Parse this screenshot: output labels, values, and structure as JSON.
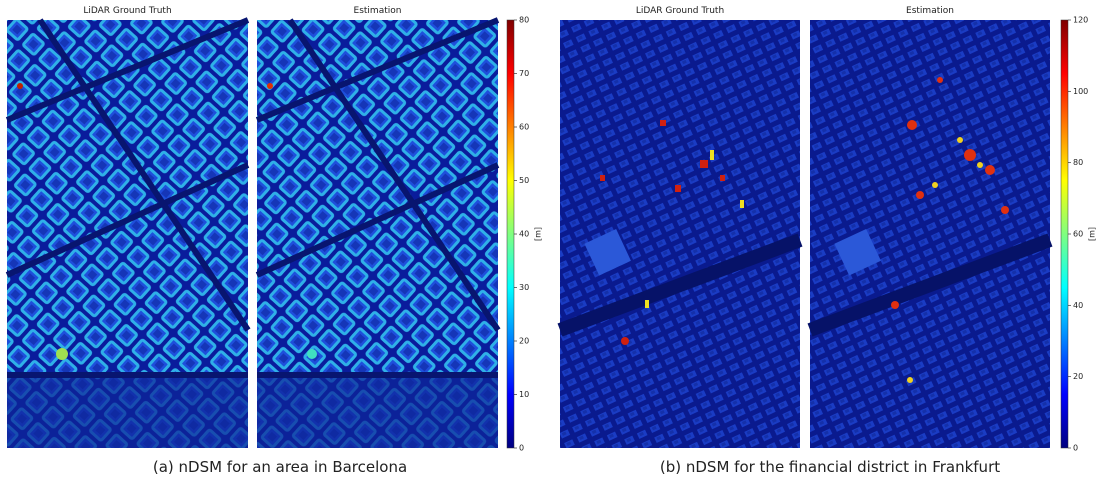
{
  "figures": [
    {
      "panels": [
        {
          "title": "LiDAR Ground Truth"
        },
        {
          "title": "Estimation"
        }
      ],
      "colorbar": {
        "label": "[m]",
        "lim": [
          0,
          80
        ],
        "ticks": [
          0,
          10,
          20,
          30,
          40,
          50,
          60,
          70,
          80
        ]
      },
      "caption": "(a) nDSM for an area in Barcelona"
    },
    {
      "panels": [
        {
          "title": "LiDAR Ground Truth"
        },
        {
          "title": "Estimation"
        }
      ],
      "colorbar": {
        "label": "[m]",
        "lim": [
          0,
          120
        ],
        "ticks": [
          0,
          20,
          40,
          60,
          80,
          100,
          120
        ]
      },
      "caption": "(b) nDSM for the financial district in Frankfurt"
    }
  ]
}
